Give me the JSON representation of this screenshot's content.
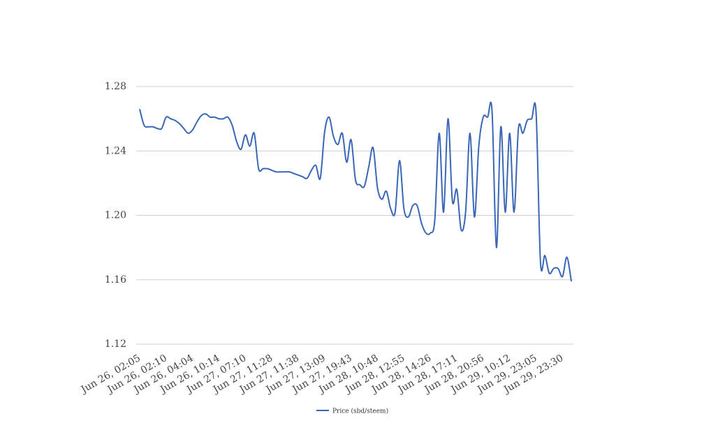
{
  "chart_data": {
    "type": "line",
    "categories": [
      "Jun 26, 02:05",
      null,
      null,
      null,
      null,
      null,
      "Jun 26, 02:10",
      null,
      null,
      null,
      null,
      null,
      "Jun 26, 04:04",
      null,
      null,
      null,
      null,
      null,
      "Jun 26, 10:14",
      null,
      null,
      null,
      null,
      null,
      "Jun 27, 07:10",
      null,
      null,
      null,
      null,
      null,
      "Jun 27, 11:28",
      null,
      null,
      null,
      null,
      null,
      "Jun 27, 11:38",
      null,
      null,
      null,
      null,
      null,
      "Jun 27, 13:09",
      null,
      null,
      null,
      null,
      null,
      "Jun 27, 19:43",
      null,
      null,
      null,
      null,
      null,
      "Jun 28, 10:48",
      null,
      null,
      null,
      null,
      null,
      "Jun 28, 12:55",
      null,
      null,
      null,
      null,
      null,
      "Jun 28, 14:26",
      null,
      null,
      null,
      null,
      null,
      "Jun 28, 17:11",
      null,
      null,
      null,
      null,
      null,
      "Jun 28, 20:56",
      null,
      null,
      null,
      null,
      null,
      "Jun 29, 10:12",
      null,
      null,
      null,
      null,
      null,
      "Jun 29, 23:05",
      null,
      null,
      null,
      null,
      null,
      "Jun 29, 23:30",
      null,
      null
    ],
    "series": [
      {
        "name": "Price (sbd/steem)",
        "color": "#3a66b8",
        "values": [
          1.266,
          1.256,
          1.255,
          1.255,
          1.254,
          1.254,
          1.261,
          1.26,
          1.259,
          1.257,
          1.254,
          1.251,
          1.253,
          1.258,
          1.262,
          1.263,
          1.261,
          1.261,
          1.26,
          1.26,
          1.261,
          1.256,
          1.246,
          1.241,
          1.25,
          1.243,
          1.251,
          1.229,
          1.229,
          1.229,
          1.228,
          1.227,
          1.227,
          1.227,
          1.227,
          1.226,
          1.225,
          1.224,
          1.223,
          1.228,
          1.231,
          1.223,
          1.252,
          1.261,
          1.249,
          1.244,
          1.251,
          1.233,
          1.247,
          1.222,
          1.219,
          1.218,
          1.23,
          1.242,
          1.217,
          1.21,
          1.215,
          1.204,
          1.202,
          1.234,
          1.204,
          1.199,
          1.206,
          1.206,
          1.195,
          1.189,
          1.189,
          1.197,
          1.251,
          1.202,
          1.26,
          1.209,
          1.216,
          1.191,
          1.202,
          1.251,
          1.199,
          1.243,
          1.261,
          1.261,
          1.265,
          1.18,
          1.255,
          1.202,
          1.251,
          1.202,
          1.254,
          1.251,
          1.259,
          1.26,
          1.264,
          1.171,
          1.175,
          1.164,
          1.167,
          1.167,
          1.162,
          1.174,
          1.159
        ]
      }
    ],
    "ylim": [
      1.12,
      1.28
    ],
    "yticks": [
      1.12,
      1.16,
      {
        "value": 1.2,
        "label": "1.20"
      },
      1.24,
      1.28
    ],
    "grid": true,
    "legend": "bottom"
  }
}
